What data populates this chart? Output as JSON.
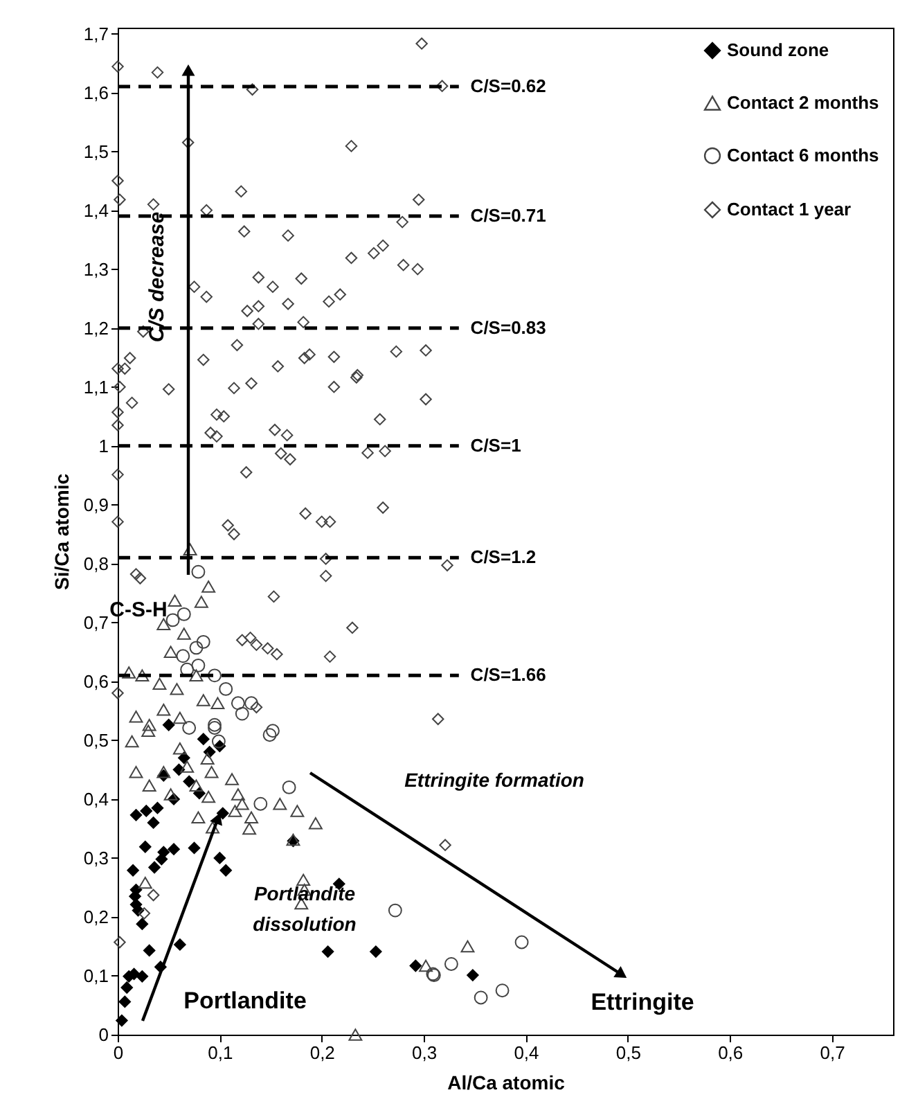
{
  "chart_data": {
    "type": "scatter",
    "xlabel": "Al/Ca atomic",
    "ylabel": "Si/Ca atomic",
    "xlim": [
      0,
      0.76
    ],
    "ylim": [
      0,
      1.71
    ],
    "xticks": [
      0,
      {
        "value": 0.1,
        "label": "0,1"
      },
      {
        "value": 0.2,
        "label": "0,2"
      },
      {
        "value": 0.3,
        "label": "0,3"
      },
      {
        "value": 0.4,
        "label": "0,4"
      },
      {
        "value": 0.5,
        "label": "0,5"
      },
      {
        "value": 0.6,
        "label": "0,6"
      },
      {
        "value": 0.7,
        "label": "0,7"
      }
    ],
    "yticks": [
      0,
      {
        "value": 0.1,
        "label": "0,1"
      },
      {
        "value": 0.2,
        "label": "0,2"
      },
      {
        "value": 0.3,
        "label": "0,3"
      },
      {
        "value": 0.4,
        "label": "0,4"
      },
      {
        "value": 0.5,
        "label": "0,5"
      },
      {
        "value": 0.6,
        "label": "0,6"
      },
      {
        "value": 0.7,
        "label": "0,7"
      },
      {
        "value": 0.8,
        "label": "0,8"
      },
      {
        "value": 0.9,
        "label": "0,9"
      },
      1,
      {
        "value": 1.1,
        "label": "1,1"
      },
      {
        "value": 1.2,
        "label": "1,2"
      },
      {
        "value": 1.3,
        "label": "1,3"
      },
      {
        "value": 1.4,
        "label": "1,4"
      },
      {
        "value": 1.5,
        "label": "1,5"
      },
      {
        "value": 1.6,
        "label": "1,6"
      },
      {
        "value": 1.7,
        "label": "1,7"
      }
    ],
    "grid": false,
    "legend": "top right",
    "series": [
      {
        "name": "Sound zone",
        "color": "#000000",
        "marker": "diamond",
        "x": [
          0.004,
          0.007,
          0.009,
          0.011,
          0.016,
          0.024,
          0.031,
          0.042,
          0.061,
          0.024,
          0.018,
          0.017,
          0.015,
          0.036,
          0.027,
          0.045,
          0.055,
          0.043,
          0.075,
          0.1,
          0.106,
          0.018,
          0.039,
          0.103,
          0.084,
          0.05,
          0.172,
          0.217,
          0.206,
          0.253,
          0.292,
          0.018,
          0.02,
          0.348,
          0.06,
          0.065,
          0.09,
          0.1,
          0.045,
          0.055,
          0.07,
          0.08,
          0.035,
          0.028
        ],
        "values": [
          0.024,
          0.056,
          0.08,
          0.099,
          0.103,
          0.099,
          0.143,
          0.115,
          0.153,
          0.188,
          0.221,
          0.235,
          0.279,
          0.284,
          0.319,
          0.31,
          0.315,
          0.298,
          0.317,
          0.3,
          0.279,
          0.373,
          0.385,
          0.376,
          0.502,
          0.526,
          0.329,
          0.256,
          0.141,
          0.141,
          0.117,
          0.246,
          0.211,
          0.101,
          0.45,
          0.47,
          0.48,
          0.49,
          0.44,
          0.4,
          0.43,
          0.41,
          0.36,
          0.38
        ]
      },
      {
        "name": "Contact 2 months",
        "color": "#444444",
        "marker": "triangle",
        "x": [
          0.093,
          0.079,
          0.115,
          0.129,
          0.131,
          0.122,
          0.118,
          0.112,
          0.089,
          0.092,
          0.159,
          0.176,
          0.194,
          0.172,
          0.182,
          0.183,
          0.18,
          0.302,
          0.233,
          0.027,
          0.077,
          0.052,
          0.031,
          0.018,
          0.045,
          0.068,
          0.014,
          0.03,
          0.061,
          0.088,
          0.071,
          0.089,
          0.082,
          0.056,
          0.045,
          0.065,
          0.052,
          0.011,
          0.024,
          0.077,
          0.041,
          0.058,
          0.084,
          0.098,
          0.018,
          0.045,
          0.061,
          0.031,
          0.343
        ],
        "values": [
          0.352,
          0.369,
          0.38,
          0.35,
          0.369,
          0.392,
          0.408,
          0.434,
          0.404,
          0.446,
          0.392,
          0.38,
          0.359,
          0.331,
          0.263,
          0.246,
          0.223,
          0.117,
          0.0,
          0.258,
          0.423,
          0.408,
          0.423,
          0.446,
          0.446,
          0.455,
          0.498,
          0.516,
          0.486,
          0.469,
          0.824,
          0.761,
          0.735,
          0.737,
          0.697,
          0.681,
          0.65,
          0.615,
          0.61,
          0.61,
          0.596,
          0.587,
          0.568,
          0.563,
          0.54,
          0.552,
          0.538,
          0.526,
          0.15
        ]
      },
      {
        "name": "Contact 6 months",
        "color": "#444444",
        "marker": "circle",
        "x": [
          0.396,
          0.327,
          0.31,
          0.356,
          0.377,
          0.149,
          0.168,
          0.14,
          0.272,
          0.309,
          0.095,
          0.099,
          0.07,
          0.079,
          0.077,
          0.084,
          0.079,
          0.095,
          0.106,
          0.118,
          0.122,
          0.095,
          0.064,
          0.068,
          0.054,
          0.065,
          0.152,
          0.131
        ],
        "values": [
          0.157,
          0.12,
          0.101,
          0.063,
          0.075,
          0.509,
          0.42,
          0.392,
          0.211,
          0.103,
          0.526,
          0.498,
          0.521,
          0.786,
          0.657,
          0.667,
          0.627,
          0.61,
          0.587,
          0.563,
          0.545,
          0.521,
          0.643,
          0.62,
          0.704,
          0.714,
          0.516,
          0.563
        ]
      },
      {
        "name": "Contact 1 year",
        "color": "#444444",
        "marker": "diamond",
        "x": [
          0,
          0.039,
          0.298,
          0.132,
          0.318,
          0.069,
          0.229,
          0,
          0.002,
          0.035,
          0.087,
          0.121,
          0.295,
          0.279,
          0.124,
          0.167,
          0.229,
          0.251,
          0.26,
          0.28,
          0.294,
          0.075,
          0.087,
          0.138,
          0.152,
          0.18,
          0.167,
          0.218,
          0.207,
          0.127,
          0.138,
          0.138,
          0.182,
          0.025,
          0.117,
          0.084,
          0.157,
          0.183,
          0.188,
          0.212,
          0.273,
          0.302,
          0.235,
          0,
          0.007,
          0.012,
          0.002,
          0.131,
          0.114,
          0.212,
          0.234,
          0.302,
          0.014,
          0.05,
          0,
          0,
          0.097,
          0.104,
          0.257,
          0.091,
          0.097,
          0.154,
          0.166,
          0.16,
          0.169,
          0.245,
          0.262,
          0,
          0.126,
          0,
          0.26,
          0.184,
          0.2,
          0.208,
          0.108,
          0.114,
          0.204,
          0.204,
          0.323,
          0.018,
          0.022,
          0.153,
          0.23,
          0.122,
          0.13,
          0.136,
          0.147,
          0.156,
          0.208,
          0,
          0.136,
          0.314,
          0.002,
          0.035,
          0.026,
          0.321
        ],
        "values": [
          1.644,
          1.634,
          1.683,
          1.605,
          1.611,
          1.515,
          1.509,
          1.45,
          1.418,
          1.41,
          1.4,
          1.432,
          1.418,
          1.38,
          1.364,
          1.357,
          1.319,
          1.327,
          1.34,
          1.307,
          1.3,
          1.27,
          1.253,
          1.286,
          1.27,
          1.284,
          1.241,
          1.257,
          1.245,
          1.229,
          1.237,
          1.207,
          1.21,
          1.194,
          1.171,
          1.146,
          1.135,
          1.149,
          1.155,
          1.151,
          1.16,
          1.162,
          1.12,
          1.131,
          1.131,
          1.149,
          1.1,
          1.106,
          1.098,
          1.1,
          1.116,
          1.079,
          1.073,
          1.096,
          1.057,
          1.035,
          1.053,
          1.05,
          1.045,
          1.022,
          1.016,
          1.027,
          1.018,
          0.987,
          0.977,
          0.988,
          0.991,
          0.951,
          0.955,
          0.871,
          0.895,
          0.885,
          0.871,
          0.871,
          0.865,
          0.85,
          0.808,
          0.779,
          0.797,
          0.782,
          0.775,
          0.744,
          0.691,
          0.67,
          0.674,
          0.662,
          0.656,
          0.646,
          0.642,
          0.58,
          0.556,
          0.536,
          0.157,
          0.237,
          0.206,
          0.322
        ]
      }
    ],
    "ref_lines": [
      {
        "axis": "y",
        "value": 1.61,
        "line_style": "dashed"
      },
      {
        "axis": "y",
        "value": 1.39,
        "line_style": "dashed"
      },
      {
        "axis": "y",
        "value": 1.2,
        "line_style": "dashed"
      },
      {
        "axis": "y",
        "value": 1.0,
        "line_style": "dashed"
      },
      {
        "axis": "y",
        "value": 0.81,
        "line_style": "dashed"
      },
      {
        "axis": "y",
        "value": 0.61,
        "line_style": "dashed"
      }
    ],
    "annotations": [
      "C/S decrease",
      "C-S-H",
      "Portlandite",
      "Portlandite dissolution",
      "Ettringite formation",
      "Ettringite",
      "C/S=0.62",
      "C/S=0.71",
      "C/S=0.83",
      "C/S=1",
      "C/S=1.2",
      "C/S=1.66"
    ]
  }
}
